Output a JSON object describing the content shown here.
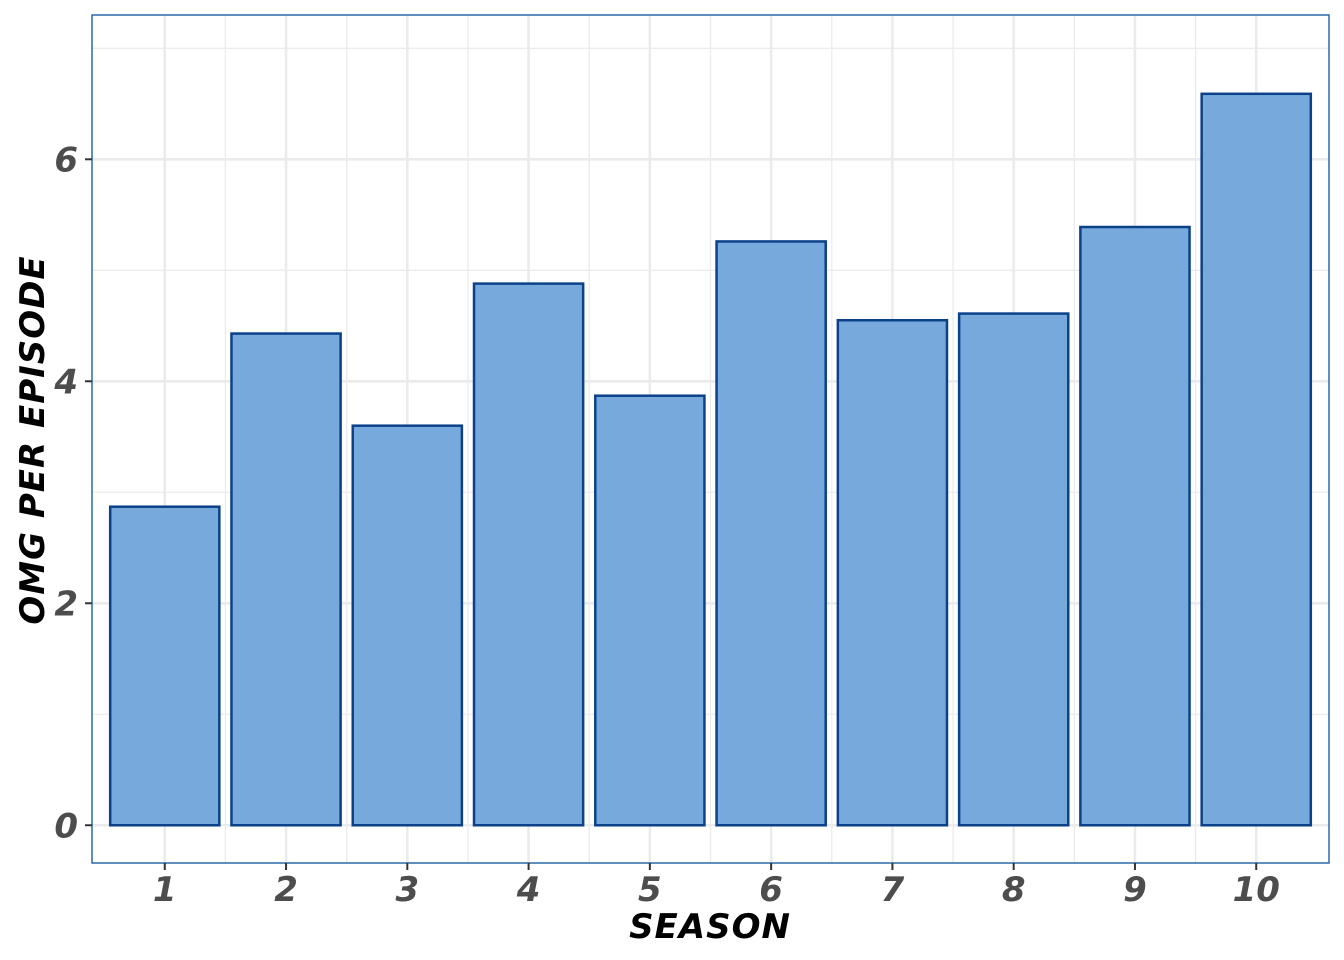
{
  "chart_data": {
    "type": "bar",
    "categories": [
      "1",
      "2",
      "3",
      "4",
      "5",
      "6",
      "7",
      "8",
      "9",
      "10"
    ],
    "values": [
      2.87,
      4.43,
      3.6,
      4.88,
      3.87,
      5.26,
      4.55,
      4.61,
      5.39,
      6.59
    ],
    "xlabel": "SEASON",
    "ylabel": "OMG PER EPISODE",
    "ylim": [
      -0.34,
      7.3
    ],
    "yticks": [
      0,
      2,
      4,
      6
    ],
    "yticklabels": [
      "0",
      "2",
      "4",
      "6"
    ],
    "grid": true,
    "colors": {
      "bar_fill": "#77a9dd",
      "bar_stroke": "#0b4189",
      "panel_border": "#2a6aa8",
      "grid": "#ebebeb",
      "tick_text": "#4d4d4d"
    }
  }
}
